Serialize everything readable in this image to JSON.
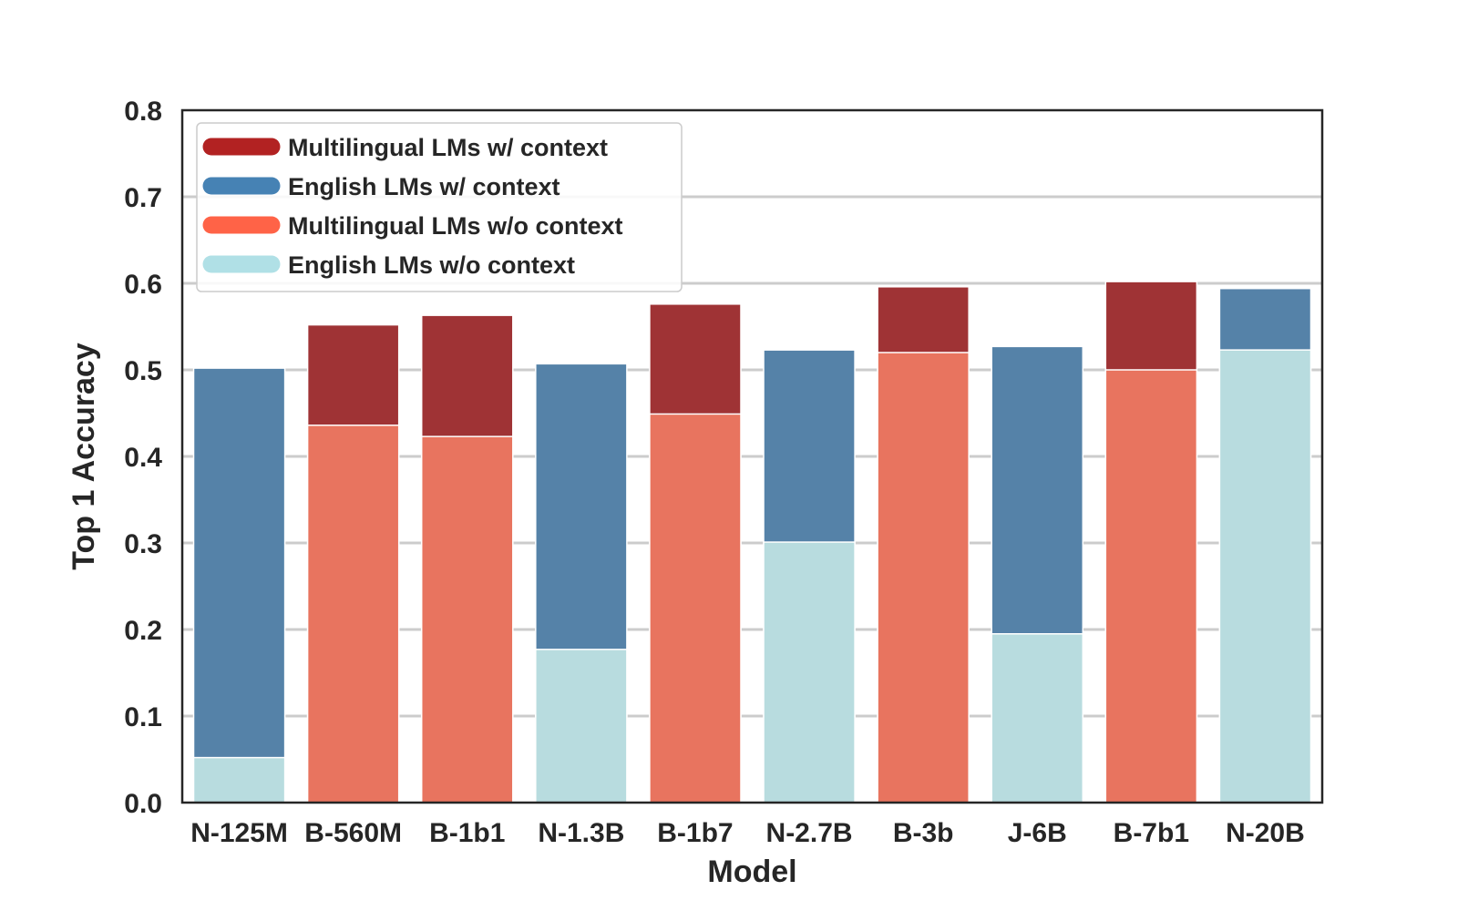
{
  "chart_data": {
    "type": "bar",
    "stacked": true,
    "xlabel": "Model",
    "ylabel": "Top 1 Accuracy",
    "ylim": [
      0,
      0.8
    ],
    "yticks": [
      "0.0",
      "0.1",
      "0.2",
      "0.3",
      "0.4",
      "0.5",
      "0.6",
      "0.7",
      "0.8"
    ],
    "grid": "horizontal",
    "legend_position": "top-left",
    "categories": [
      "N-125M",
      "B-560M",
      "B-1b1",
      "N-1.3B",
      "B-1b7",
      "N-2.7B",
      "B-3b",
      "J-6B",
      "B-7b1",
      "N-20B"
    ],
    "bars": [
      {
        "family": "english",
        "without_context": 0.052,
        "with_context": 0.502
      },
      {
        "family": "multilingual",
        "without_context": 0.436,
        "with_context": 0.552
      },
      {
        "family": "multilingual",
        "without_context": 0.423,
        "with_context": 0.563
      },
      {
        "family": "english",
        "without_context": 0.177,
        "with_context": 0.507
      },
      {
        "family": "multilingual",
        "without_context": 0.449,
        "with_context": 0.576
      },
      {
        "family": "english",
        "without_context": 0.301,
        "with_context": 0.523
      },
      {
        "family": "multilingual",
        "without_context": 0.52,
        "with_context": 0.596
      },
      {
        "family": "english",
        "without_context": 0.195,
        "with_context": 0.527
      },
      {
        "family": "multilingual",
        "without_context": 0.5,
        "with_context": 0.602
      },
      {
        "family": "english",
        "without_context": 0.523,
        "with_context": 0.594
      }
    ],
    "legend": [
      {
        "label": "Multilingual LMs w/ context",
        "color": "#b22222"
      },
      {
        "label": "English LMs w/ context",
        "color": "#4682b4"
      },
      {
        "label": "Multilingual LMs w/o context",
        "color": "#ff6347"
      },
      {
        "label": "English LMs w/o context",
        "color": "#b0e0e6"
      }
    ],
    "bar_colors": {
      "multilingual_with_context": "#9f3335",
      "english_with_context": "#5582a8",
      "multilingual_without_context": "#e8745f",
      "english_without_context": "#b8dcdf"
    }
  }
}
